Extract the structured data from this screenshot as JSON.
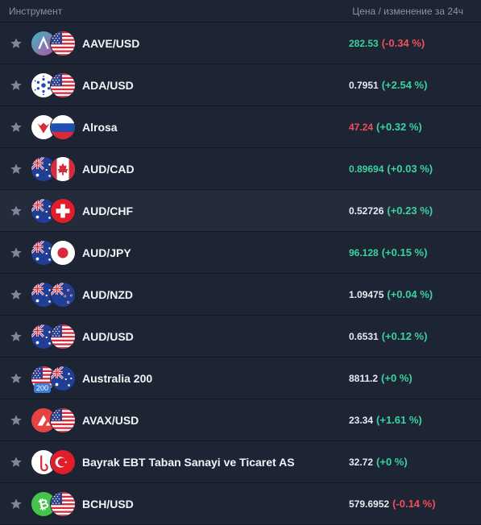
{
  "header": {
    "instrument_label": "Инструмент",
    "price_label": "Цена / изменение за 24ч"
  },
  "rows": [
    {
      "name": "AAVE/USD",
      "price": "282.53",
      "price_color": "up",
      "change": "(-0.34 %)",
      "change_color": "down",
      "flags": [
        "aave-icon",
        "us-flag"
      ]
    },
    {
      "name": "ADA/USD",
      "price": "0.7951",
      "price_color": "neutral",
      "change": "(+2.54 %)",
      "change_color": "up",
      "flags": [
        "cardano-icon",
        "us-flag"
      ]
    },
    {
      "name": "Alrosa",
      "price": "47.24",
      "price_color": "down",
      "change": "(+0.32 %)",
      "change_color": "up",
      "flags": [
        "alrosa-icon",
        "russia-flag"
      ]
    },
    {
      "name": "AUD/CAD",
      "price": "0.89694",
      "price_color": "up",
      "change": "(+0.03 %)",
      "change_color": "up",
      "flags": [
        "australia-flag",
        "canada-flag"
      ]
    },
    {
      "name": "AUD/CHF",
      "price": "0.52726",
      "price_color": "neutral",
      "change": "(+0.23 %)",
      "change_color": "up",
      "flags": [
        "australia-flag",
        "switzerland-flag"
      ]
    },
    {
      "name": "AUD/JPY",
      "price": "96.128",
      "price_color": "up",
      "change": "(+0.15 %)",
      "change_color": "up",
      "flags": [
        "australia-flag",
        "japan-flag"
      ]
    },
    {
      "name": "AUD/NZD",
      "price": "1.09475",
      "price_color": "neutral",
      "change": "(+0.04 %)",
      "change_color": "up",
      "flags": [
        "australia-flag",
        "new-zealand-flag"
      ]
    },
    {
      "name": "AUD/USD",
      "price": "0.6531",
      "price_color": "neutral",
      "change": "(+0.12 %)",
      "change_color": "up",
      "flags": [
        "australia-flag",
        "us-flag"
      ]
    },
    {
      "name": "Australia 200",
      "price": "8811.2",
      "price_color": "neutral",
      "change": "(+0 %)",
      "change_color": "up",
      "flags": [
        "us-flag",
        "australia-flag"
      ],
      "badge": "200"
    },
    {
      "name": "AVAX/USD",
      "price": "23.34",
      "price_color": "neutral",
      "change": "(+1.61 %)",
      "change_color": "up",
      "flags": [
        "avalanche-icon",
        "us-flag"
      ]
    },
    {
      "name": "Bayrak EBT Taban Sanayi ve Ticaret AS",
      "price": "32.72",
      "price_color": "neutral",
      "change": "(+0 %)",
      "change_color": "up",
      "flags": [
        "bayrak-icon",
        "turkey-flag"
      ]
    },
    {
      "name": "BCH/USD",
      "price": "579.6952",
      "price_color": "neutral",
      "change": "(-0.14 %)",
      "change_color": "down",
      "flags": [
        "bitcoin-cash-icon",
        "us-flag"
      ]
    }
  ],
  "highlight_row": 4,
  "colors": {
    "background": "#1d2433",
    "up": "#3ad29f",
    "down": "#f0505a",
    "badge": "#3d7bd9"
  }
}
